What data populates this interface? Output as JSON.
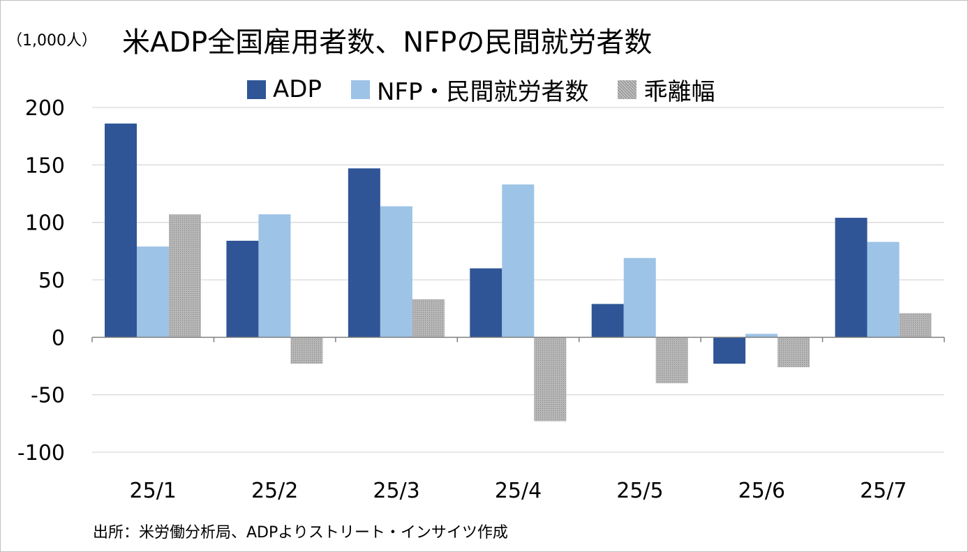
{
  "unit_label": "（1,000人）",
  "title": "米ADP全国雇用者数、NFPの民間就労者数",
  "source_note": "出所：米労働分析局、ADPよりストリート・インサイツ作成",
  "colors": {
    "adp": "#2f5597",
    "nfp": "#9dc3e6",
    "gap": "#a6a6a6",
    "grid": "#d9d9d9",
    "axis": "#7f7f7f"
  },
  "chart_data": {
    "type": "bar",
    "title": "米ADP全国雇用者数、NFPの民間就労者数",
    "ylabel": "（1,000人）",
    "xlabel": "",
    "categories": [
      "25/1",
      "25/2",
      "25/3",
      "25/4",
      "25/5",
      "25/6",
      "25/7"
    ],
    "series": [
      {
        "name": "ADP",
        "values": [
          186,
          84,
          147,
          60,
          29,
          -23,
          104
        ]
      },
      {
        "name": "NFP・民間就労者数",
        "values": [
          79,
          107,
          114,
          133,
          69,
          3,
          83
        ]
      },
      {
        "name": "乖離幅",
        "values": [
          107,
          -23,
          33,
          -73,
          -40,
          -26,
          21
        ]
      }
    ],
    "ylim": [
      -100,
      200
    ],
    "yticks": [
      200,
      150,
      100,
      50,
      0,
      -50,
      -100
    ],
    "grid": true,
    "legend_position": "top-center"
  }
}
